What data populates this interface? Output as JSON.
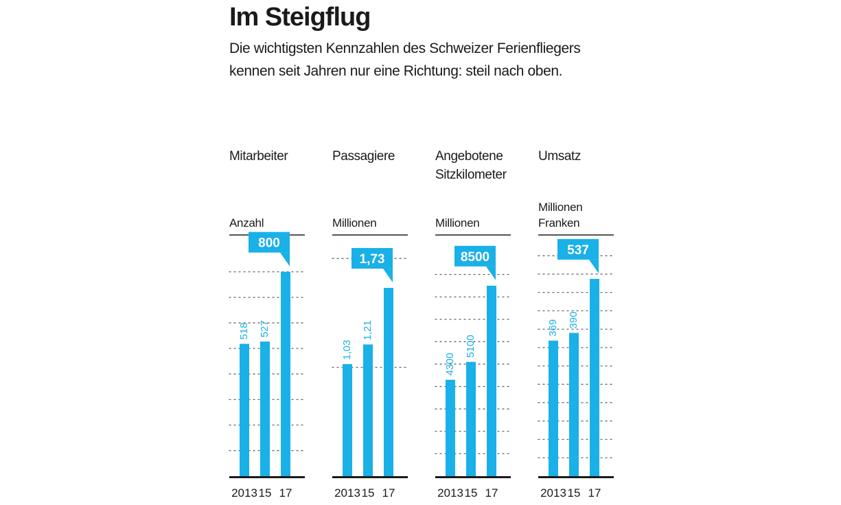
{
  "colors": {
    "accent": "#1ab0e8",
    "text": "#1a1a1a",
    "grid": "#666666"
  },
  "header": {
    "title": "Im Steigflug",
    "subtitle": "Die wichtigsten Kennzahlen des Schweizer Ferienfliegers kennen seit Jahren nur eine Richtung: steil nach oben."
  },
  "panels": [
    {
      "title": "Mitarbeiter",
      "unit": "Anzahl"
    },
    {
      "title": "Passagiere",
      "unit": "Millionen"
    },
    {
      "title": "Angebotene\nSitzkilometer",
      "unit": "Millionen"
    },
    {
      "title": "Umsatz",
      "unit": "Millionen\nFranken"
    }
  ],
  "chart_data": [
    {
      "type": "bar",
      "title": "Mitarbeiter",
      "ylabel": "Anzahl",
      "categories": [
        "2013",
        "15",
        "17"
      ],
      "values": [
        518,
        527,
        800
      ],
      "labels": [
        "518",
        "527",
        "800"
      ],
      "gridlines": [
        0,
        100,
        200,
        300,
        400,
        500,
        600,
        700,
        800
      ],
      "ylim": [
        0,
        850
      ]
    },
    {
      "type": "bar",
      "title": "Passagiere",
      "ylabel": "Millionen",
      "categories": [
        "2013",
        "15",
        "17"
      ],
      "values": [
        1.03,
        1.21,
        1.73
      ],
      "labels": [
        "1,03",
        "1,21",
        "1,73"
      ],
      "gridlines": [
        0,
        1,
        2
      ],
      "ylim": [
        0,
        1.995
      ]
    },
    {
      "type": "bar",
      "title": "Angebotene Sitzkilometer",
      "ylabel": "Millionen",
      "categories": [
        "2013",
        "15",
        "17"
      ],
      "values": [
        4300,
        5100,
        8500
      ],
      "labels": [
        "4300",
        "5100",
        "8500"
      ],
      "gridlines": [
        0,
        1000,
        2000,
        3000,
        4000,
        5000,
        6000,
        7000,
        8000,
        9000
      ],
      "ylim": [
        0,
        9690
      ]
    },
    {
      "type": "bar",
      "title": "Umsatz",
      "ylabel": "Millionen Franken",
      "categories": [
        "2013",
        "15",
        "17"
      ],
      "values": [
        369,
        390,
        537
      ],
      "labels": [
        "369",
        "390",
        "537"
      ],
      "gridlines": [
        0,
        50,
        100,
        150,
        200,
        250,
        300,
        350,
        400,
        450,
        500,
        550,
        600
      ],
      "ylim": [
        0,
        591
      ]
    }
  ]
}
